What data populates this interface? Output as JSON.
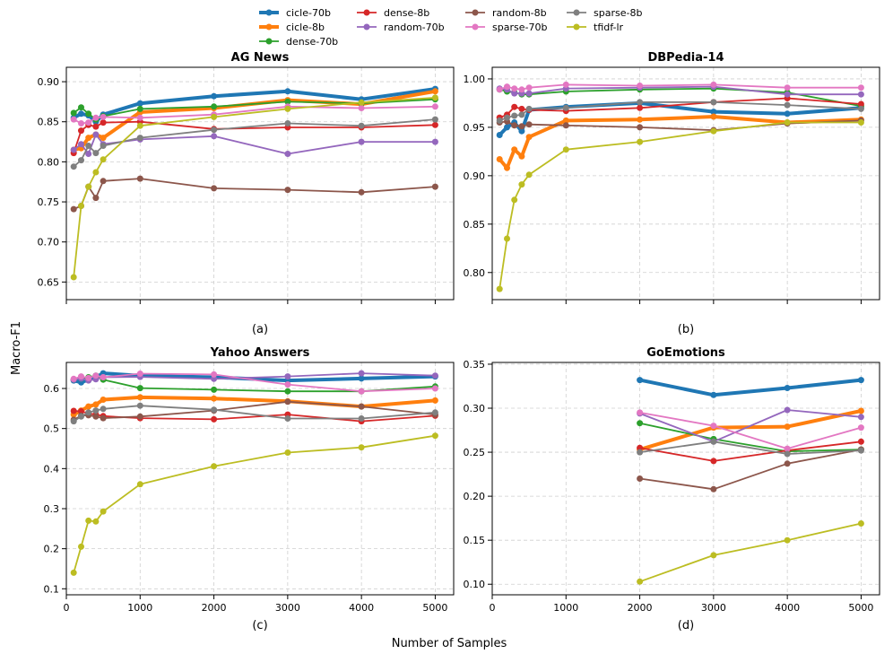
{
  "chart_data": {
    "type": "line",
    "ylabel": "Macro-F1",
    "xlabel": "Number of Samples",
    "legend": {
      "placement": "top-center",
      "entries": [
        "cicle-70b",
        "cicle-8b",
        "dense-70b",
        "dense-8b",
        "random-70b",
        "random-8b",
        "sparse-70b",
        "sparse-8b",
        "tfidf-lr"
      ]
    },
    "series_styles": {
      "cicle-70b": {
        "color": "#1f77b4",
        "thick": true
      },
      "cicle-8b": {
        "color": "#ff7f0e",
        "thick": true
      },
      "dense-70b": {
        "color": "#2ca02c",
        "thick": false
      },
      "dense-8b": {
        "color": "#d62728",
        "thick": false
      },
      "random-70b": {
        "color": "#9467bd",
        "thick": false
      },
      "random-8b": {
        "color": "#8c564b",
        "thick": false
      },
      "sparse-70b": {
        "color": "#e377c2",
        "thick": false
      },
      "sparse-8b": {
        "color": "#7f7f7f",
        "thick": false
      },
      "tfidf-lr": {
        "color": "#bcbd22",
        "thick": false
      }
    },
    "panels": [
      {
        "title": "AG News",
        "sublabel": "(a)",
        "xlim": [
          0,
          5250
        ],
        "ylim": [
          0.628,
          0.918
        ],
        "xticks": [
          0,
          1000,
          2000,
          3000,
          4000,
          5000
        ],
        "yticks": [
          0.65,
          0.7,
          0.75,
          0.8,
          0.85,
          0.9
        ],
        "ytick_labels": [
          "0.65",
          "0.70",
          "0.75",
          "0.80",
          "0.85",
          "0.90"
        ],
        "show_xtick_labels": false,
        "x": [
          100,
          200,
          300,
          400,
          500,
          1000,
          2000,
          3000,
          4000,
          5000
        ],
        "series": [
          {
            "name": "cicle-70b",
            "values": [
              0.855,
              0.86,
              0.858,
              0.85,
              0.859,
              0.873,
              0.882,
              0.888,
              0.878,
              0.891
            ]
          },
          {
            "name": "cicle-8b",
            "values": [
              0.815,
              0.817,
              0.83,
              0.834,
              0.83,
              0.862,
              0.867,
              0.877,
              0.872,
              0.888
            ]
          },
          {
            "name": "dense-70b",
            "values": [
              0.861,
              0.868,
              0.86,
              0.853,
              0.857,
              0.866,
              0.869,
              0.875,
              0.873,
              0.878
            ]
          },
          {
            "name": "dense-8b",
            "values": [
              0.811,
              0.839,
              0.846,
              0.844,
              0.849,
              0.85,
              0.841,
              0.843,
              0.843,
              0.846
            ]
          },
          {
            "name": "random-70b",
            "values": [
              0.815,
              0.822,
              0.81,
              0.834,
              0.822,
              0.828,
              0.832,
              0.81,
              0.825,
              0.825
            ]
          },
          {
            "name": "random-8b",
            "values": [
              0.741,
              0.745,
              0.769,
              0.755,
              0.776,
              0.779,
              0.767,
              0.765,
              0.762,
              0.769
            ]
          },
          {
            "name": "sparse-70b",
            "values": [
              0.853,
              0.848,
              0.849,
              0.855,
              0.856,
              0.855,
              0.859,
              0.869,
              0.867,
              0.869
            ]
          },
          {
            "name": "sparse-8b",
            "values": [
              0.794,
              0.802,
              0.82,
              0.811,
              0.82,
              0.83,
              0.84,
              0.848,
              0.845,
              0.853
            ]
          },
          {
            "name": "tfidf-lr",
            "values": [
              0.656,
              0.745,
              0.769,
              0.787,
              0.803,
              0.845,
              0.856,
              0.866,
              0.874,
              0.88
            ]
          }
        ]
      },
      {
        "title": "DBPedia-14",
        "sublabel": "(b)",
        "xlim": [
          0,
          5250
        ],
        "ylim": [
          0.772,
          1.012
        ],
        "xticks": [
          0,
          1000,
          2000,
          3000,
          4000,
          5000
        ],
        "yticks": [
          0.8,
          0.85,
          0.9,
          0.95,
          1.0
        ],
        "ytick_labels": [
          "0.80",
          "0.85",
          "0.90",
          "0.95",
          "1.00"
        ],
        "show_xtick_labels": false,
        "x": [
          100,
          200,
          300,
          400,
          500,
          1000,
          2000,
          3000,
          4000,
          5000
        ],
        "series": [
          {
            "name": "cicle-70b",
            "values": [
              0.942,
              0.95,
              0.955,
              0.946,
              0.968,
              0.971,
              0.975,
              0.966,
              0.964,
              0.97
            ]
          },
          {
            "name": "cicle-8b",
            "values": [
              0.917,
              0.908,
              0.927,
              0.92,
              0.94,
              0.957,
              0.958,
              0.961,
              0.955,
              0.958
            ]
          },
          {
            "name": "dense-70b",
            "values": [
              0.989,
              0.987,
              0.986,
              0.984,
              0.984,
              0.987,
              0.989,
              0.99,
              0.986,
              0.972
            ]
          },
          {
            "name": "dense-8b",
            "values": [
              0.96,
              0.963,
              0.971,
              0.969,
              0.968,
              0.967,
              0.97,
              0.976,
              0.98,
              0.974
            ]
          },
          {
            "name": "random-70b",
            "values": [
              0.99,
              0.989,
              0.985,
              0.985,
              0.985,
              0.99,
              0.991,
              0.992,
              0.984,
              0.984
            ]
          },
          {
            "name": "random-8b",
            "values": [
              0.955,
              0.956,
              0.952,
              0.951,
              0.953,
              0.952,
              0.95,
              0.947,
              0.954,
              0.957
            ]
          },
          {
            "name": "sparse-70b",
            "values": [
              0.989,
              0.992,
              0.99,
              0.989,
              0.991,
              0.994,
              0.993,
              0.994,
              0.991,
              0.991
            ]
          },
          {
            "name": "sparse-8b",
            "values": [
              0.957,
              0.96,
              0.962,
              0.963,
              0.969,
              0.97,
              0.976,
              0.976,
              0.973,
              0.969
            ]
          },
          {
            "name": "tfidf-lr",
            "values": [
              0.783,
              0.835,
              0.875,
              0.891,
              0.901,
              0.927,
              0.935,
              0.946,
              0.955,
              0.955
            ]
          }
        ]
      },
      {
        "title": "Yahoo Answers",
        "sublabel": "(c)",
        "xlim": [
          0,
          5250
        ],
        "ylim": [
          0.085,
          0.665
        ],
        "xticks": [
          0,
          1000,
          2000,
          3000,
          4000,
          5000
        ],
        "yticks": [
          0.1,
          0.2,
          0.3,
          0.4,
          0.5,
          0.6
        ],
        "ytick_labels": [
          "0.1",
          "0.2",
          "0.3",
          "0.4",
          "0.5",
          "0.6"
        ],
        "show_xtick_labels": true,
        "x": [
          100,
          200,
          300,
          400,
          500,
          1000,
          2000,
          3000,
          4000,
          5000
        ],
        "series": [
          {
            "name": "cicle-70b",
            "values": [
              0.62,
              0.615,
              0.622,
              0.628,
              0.638,
              0.632,
              0.628,
              0.62,
              0.625,
              0.63
            ]
          },
          {
            "name": "cicle-8b",
            "values": [
              0.535,
              0.545,
              0.555,
              0.56,
              0.572,
              0.578,
              0.575,
              0.568,
              0.555,
              0.57
            ]
          },
          {
            "name": "dense-70b",
            "values": [
              0.622,
              0.625,
              0.628,
              0.632,
              0.622,
              0.601,
              0.597,
              0.593,
              0.593,
              0.605
            ]
          },
          {
            "name": "dense-8b",
            "values": [
              0.544,
              0.543,
              0.538,
              0.535,
              0.531,
              0.526,
              0.523,
              0.535,
              0.518,
              0.532
            ]
          },
          {
            "name": "random-70b",
            "values": [
              0.622,
              0.625,
              0.62,
              0.623,
              0.628,
              0.629,
              0.624,
              0.63,
              0.638,
              0.632
            ]
          },
          {
            "name": "random-8b",
            "values": [
              0.522,
              0.532,
              0.533,
              0.53,
              0.526,
              0.53,
              0.545,
              0.567,
              0.555,
              0.535
            ]
          },
          {
            "name": "sparse-70b",
            "values": [
              0.624,
              0.63,
              0.626,
              0.632,
              0.628,
              0.637,
              0.635,
              0.61,
              0.593,
              0.6
            ]
          },
          {
            "name": "sparse-8b",
            "values": [
              0.518,
              0.53,
              0.54,
              0.545,
              0.549,
              0.557,
              0.547,
              0.525,
              0.525,
              0.54
            ]
          },
          {
            "name": "tfidf-lr",
            "values": [
              0.14,
              0.205,
              0.27,
              0.268,
              0.293,
              0.361,
              0.406,
              0.44,
              0.453,
              0.482
            ]
          }
        ]
      },
      {
        "title": "GoEmotions",
        "sublabel": "(d)",
        "xlim": [
          0,
          5250
        ],
        "ylim": [
          0.088,
          0.352
        ],
        "xticks": [
          0,
          1000,
          2000,
          3000,
          4000,
          5000
        ],
        "yticks": [
          0.1,
          0.15,
          0.2,
          0.25,
          0.3,
          0.35
        ],
        "ytick_labels": [
          "0.10",
          "0.15",
          "0.20",
          "0.25",
          "0.30",
          "0.35"
        ],
        "show_xtick_labels": true,
        "x": [
          2000,
          3000,
          4000,
          5000
        ],
        "series": [
          {
            "name": "cicle-70b",
            "values": [
              0.332,
              0.315,
              0.323,
              0.332
            ]
          },
          {
            "name": "cicle-8b",
            "values": [
              0.253,
              0.278,
              0.279,
              0.297
            ]
          },
          {
            "name": "dense-70b",
            "values": [
              0.283,
              0.265,
              0.251,
              0.253
            ]
          },
          {
            "name": "dense-8b",
            "values": [
              0.255,
              0.24,
              0.252,
              0.262
            ]
          },
          {
            "name": "random-70b",
            "values": [
              0.294,
              0.262,
              0.298,
              0.29
            ]
          },
          {
            "name": "random-8b",
            "values": [
              0.22,
              0.208,
              0.237,
              0.253
            ]
          },
          {
            "name": "sparse-70b",
            "values": [
              0.295,
              0.28,
              0.254,
              0.278
            ]
          },
          {
            "name": "sparse-8b",
            "values": [
              0.25,
              0.262,
              0.248,
              0.252
            ]
          },
          {
            "name": "tfidf-lr",
            "values": [
              0.103,
              0.133,
              0.15,
              0.169
            ]
          }
        ]
      }
    ]
  }
}
